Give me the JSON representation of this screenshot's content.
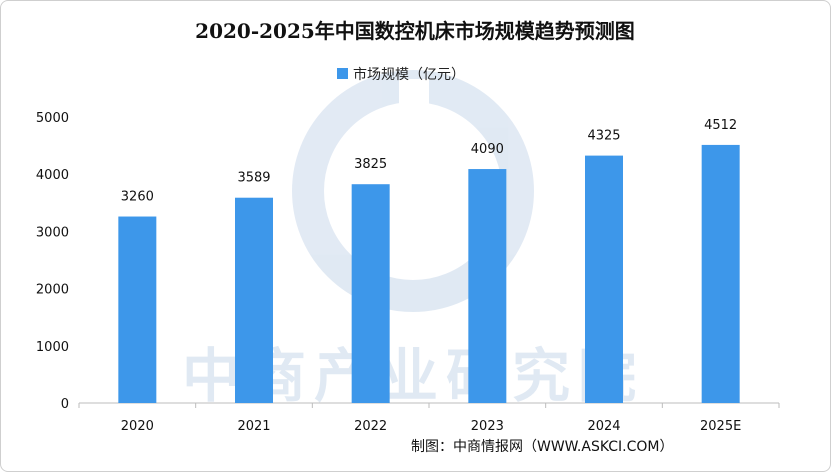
{
  "chart_data": {
    "type": "bar",
    "title": "2020-2025年中国数控机床市场规模趋势预测图",
    "categories": [
      "2020",
      "2021",
      "2022",
      "2023",
      "2024",
      "2025E"
    ],
    "series": [
      {
        "name": "市场规模（亿元）",
        "values": [
          3260,
          3589,
          3825,
          4090,
          4325,
          4512
        ]
      }
    ],
    "ylim": [
      0,
      5000
    ],
    "yticks": [
      0,
      1000,
      2000,
      3000,
      4000,
      5000
    ],
    "grid": false,
    "legend": "top-center",
    "bar_color": "#3d97ea"
  },
  "watermark": {
    "text": "中商产业研究院"
  },
  "source": {
    "text": "制图：中商情报网（WWW.ASKCI.COM）"
  }
}
